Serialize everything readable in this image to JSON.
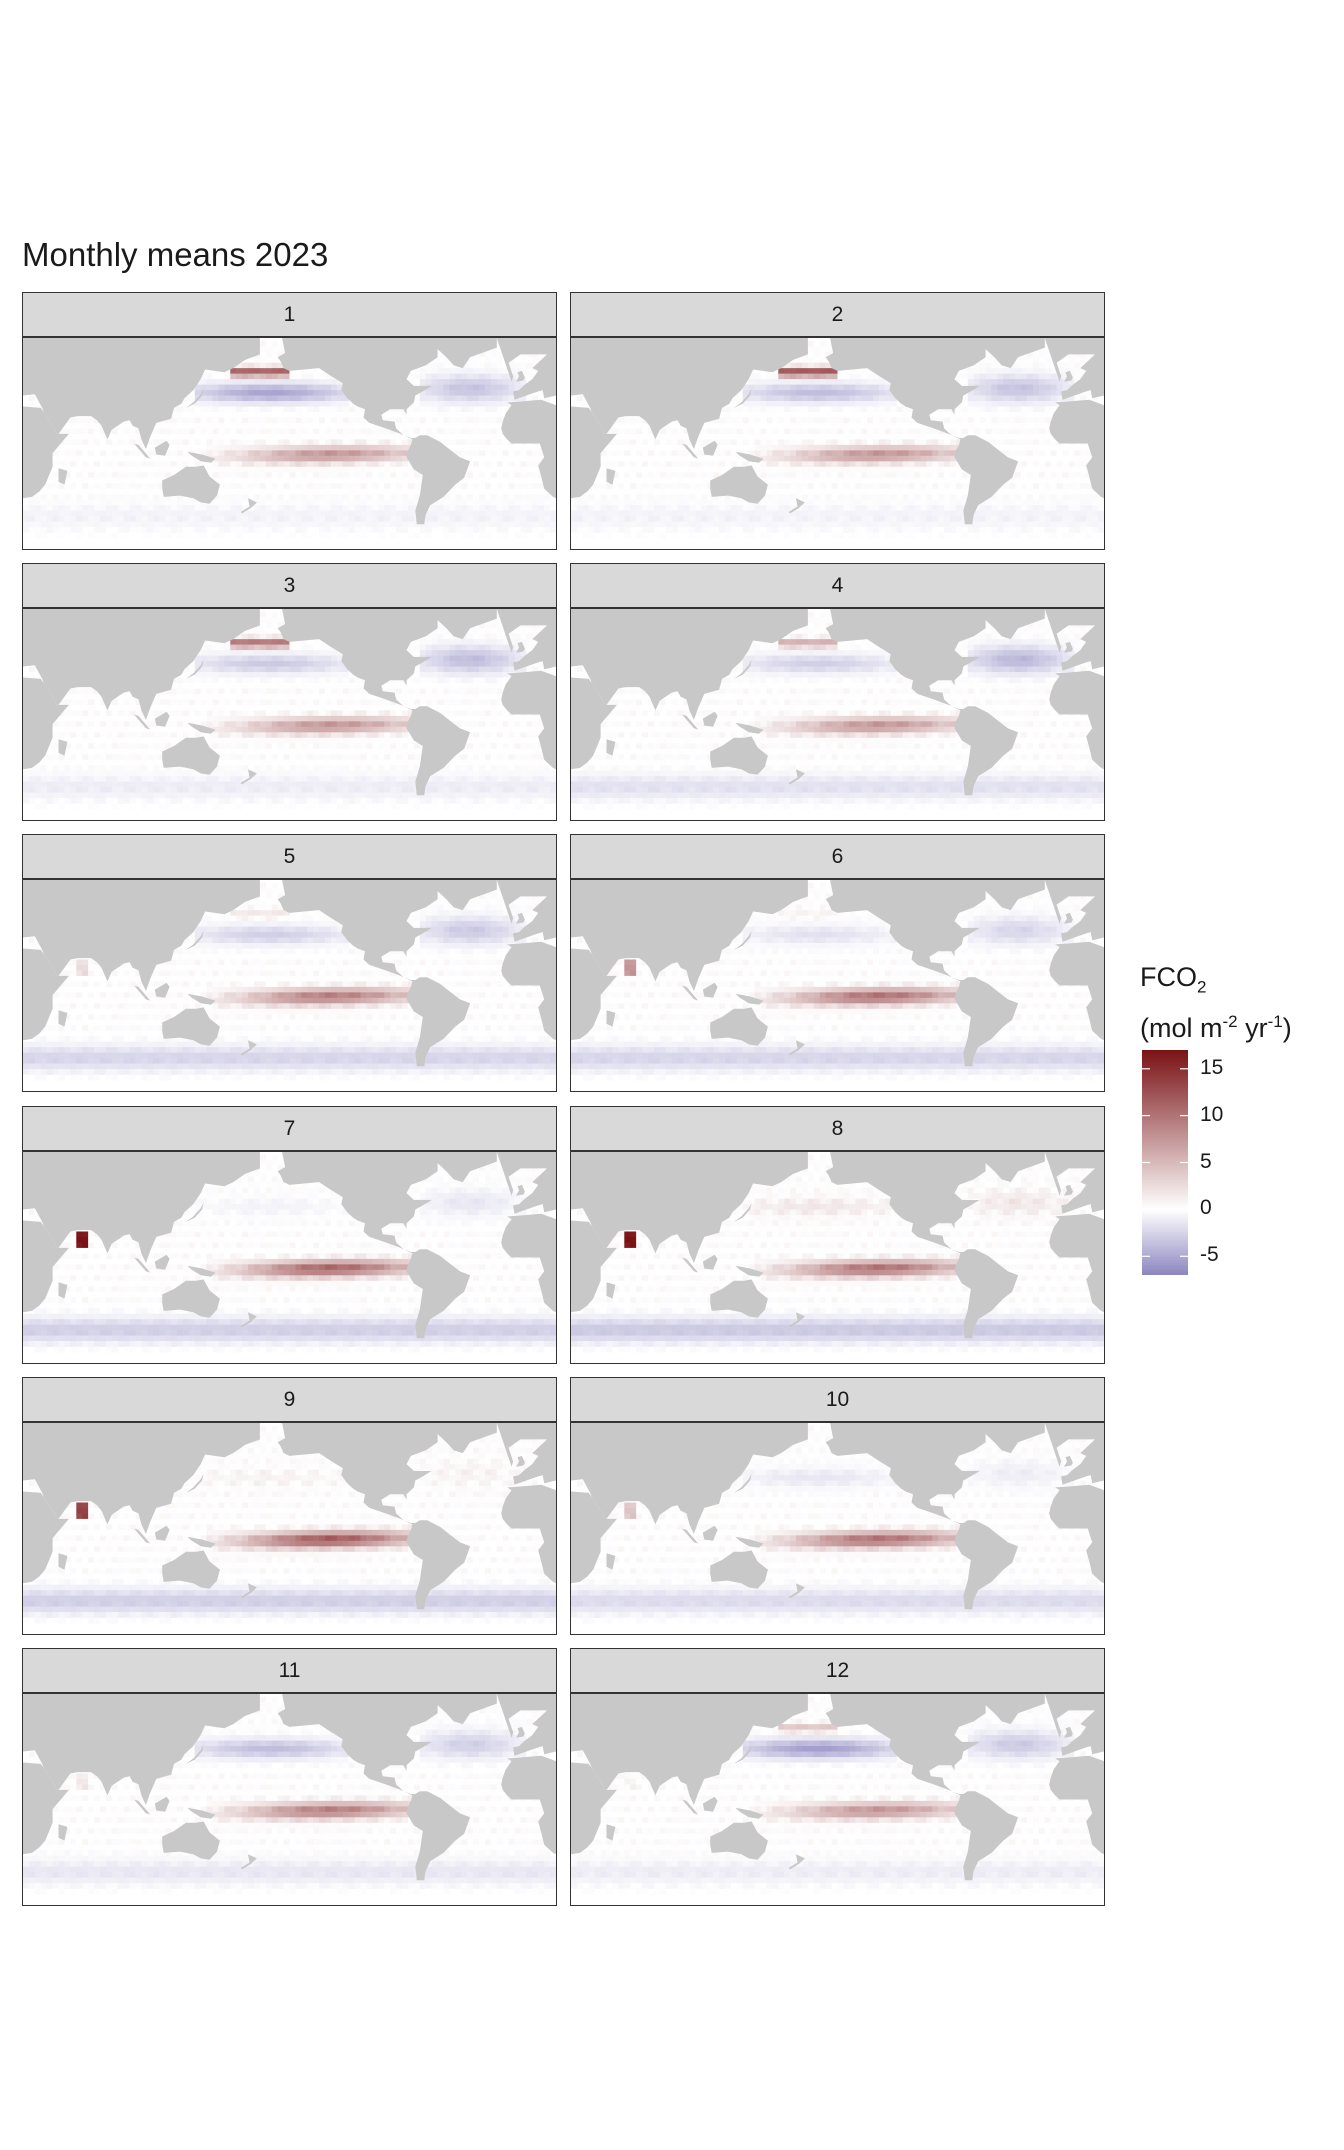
{
  "title": "Monthly means 2023",
  "panels": [
    {
      "label": "1",
      "npac": -0.75,
      "npac_hot": 0.7,
      "eqpac": 0.45,
      "natl": -0.5,
      "ind_hot": 0.0,
      "so": -0.1
    },
    {
      "label": "2",
      "npac": -0.55,
      "npac_hot": 0.75,
      "eqpac": 0.45,
      "natl": -0.5,
      "ind_hot": 0.0,
      "so": -0.1
    },
    {
      "label": "3",
      "npac": -0.45,
      "npac_hot": 0.6,
      "eqpac": 0.45,
      "natl": -0.55,
      "ind_hot": 0.0,
      "so": -0.15
    },
    {
      "label": "4",
      "npac": -0.4,
      "npac_hot": 0.35,
      "eqpac": 0.45,
      "natl": -0.6,
      "ind_hot": 0.0,
      "so": -0.25
    },
    {
      "label": "5",
      "npac": -0.4,
      "npac_hot": 0.1,
      "eqpac": 0.55,
      "natl": -0.45,
      "ind_hot": 0.15,
      "so": -0.35
    },
    {
      "label": "6",
      "npac": -0.25,
      "npac_hot": 0.05,
      "eqpac": 0.6,
      "natl": -0.35,
      "ind_hot": 0.45,
      "so": -0.35
    },
    {
      "label": "7",
      "npac": -0.1,
      "npac_hot": 0.0,
      "eqpac": 0.65,
      "natl": -0.2,
      "ind_hot": 1.0,
      "so": -0.4
    },
    {
      "label": "8",
      "npac": 0.1,
      "npac_hot": 0.0,
      "eqpac": 0.6,
      "natl": 0.1,
      "ind_hot": 1.0,
      "so": -0.45
    },
    {
      "label": "9",
      "npac": 0.05,
      "npac_hot": 0.0,
      "eqpac": 0.7,
      "natl": 0.05,
      "ind_hot": 0.8,
      "so": -0.4
    },
    {
      "label": "10",
      "npac": -0.2,
      "npac_hot": 0.0,
      "eqpac": 0.6,
      "natl": -0.15,
      "ind_hot": 0.25,
      "so": -0.3
    },
    {
      "label": "11",
      "npac": -0.55,
      "npac_hot": 0.0,
      "eqpac": 0.55,
      "natl": -0.4,
      "ind_hot": 0.1,
      "so": -0.2
    },
    {
      "label": "12",
      "npac": -0.8,
      "npac_hot": 0.25,
      "eqpac": 0.45,
      "natl": -0.45,
      "ind_hot": 0.05,
      "so": -0.15
    }
  ],
  "legend": {
    "title_main": "FCO",
    "title_sub": "2",
    "units_a": "(mol m",
    "units_sup1": "-2",
    "units_b": " yr",
    "units_sup2": "-1",
    "units_c": ")",
    "ticks": [
      "15",
      "10",
      "5",
      "0",
      "-5"
    ],
    "tick_values": [
      15,
      10,
      5,
      0,
      -5
    ],
    "range": [
      -7,
      17
    ],
    "colors": {
      "low": "#8c86c0",
      "mid": "#ffffff",
      "high": "#7a1215",
      "land": "#c8c8c8"
    }
  }
}
